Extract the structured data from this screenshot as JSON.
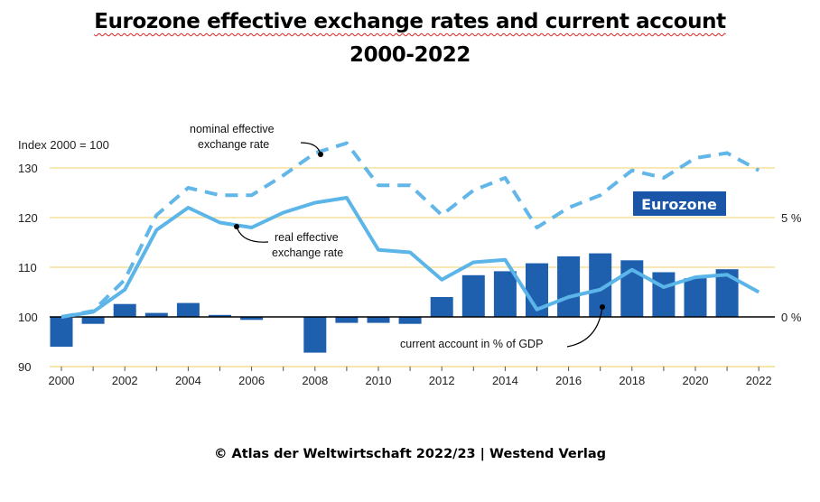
{
  "title_line1": "Eurozone effective exchange rates and current account",
  "title_line2": "2000-2022",
  "credit": "© Atlas der Weltwirtschaft 2022/23 | Westend Verlag",
  "colors": {
    "nominal": "#62b6e8",
    "real": "#5bb5e8",
    "bars": "#1e5fae",
    "grid": "#f3dc86",
    "badge_bg": "#1a55a8",
    "badge_text": "#ffffff"
  },
  "chart_data": {
    "type": "line+bar",
    "left_axis": {
      "label": "Index 2000 = 100",
      "ylim": [
        90,
        132
      ],
      "ticks": [
        "90",
        "100",
        "110",
        "120",
        "130"
      ]
    },
    "right_axis": {
      "ticks": [
        "0 %",
        "5 %"
      ]
    },
    "x_ticks": [
      "2000",
      "2002",
      "2004",
      "2006",
      "2008",
      "2010",
      "2012",
      "2014",
      "2016",
      "2018",
      "2020",
      "2022"
    ],
    "years": [
      2000,
      2001,
      2002,
      2003,
      2004,
      2005,
      2006,
      2007,
      2008,
      2009,
      2010,
      2011,
      2012,
      2013,
      2014,
      2015,
      2016,
      2017,
      2018,
      2019,
      2020,
      2021,
      2022
    ],
    "grid": true,
    "series": [
      {
        "name": "nominal effective exchange rate",
        "style": "dashed",
        "values": [
          100,
          101.2,
          107.5,
          120.5,
          126,
          124.5,
          124.5,
          128.5,
          133,
          135,
          126.5,
          126.5,
          120.5,
          125.5,
          128,
          118,
          122,
          124.5,
          129.5,
          128,
          132,
          133,
          129.5
        ]
      },
      {
        "name": "real effective exchange rate",
        "style": "solid",
        "values": [
          100,
          101,
          105.5,
          117.5,
          122,
          119,
          118,
          121,
          123,
          124,
          113.5,
          113,
          107.5,
          111,
          111.5,
          101.5,
          104,
          105.5,
          109.5,
          106,
          108,
          108.5,
          105
        ]
      },
      {
        "name": "current account in % of GDP",
        "type": "bar",
        "axis": "right",
        "values": [
          -1.5,
          -0.35,
          0.65,
          0.2,
          0.7,
          0.1,
          -0.15,
          0,
          -1.8,
          -0.3,
          -0.3,
          -0.35,
          1.0,
          2.1,
          2.3,
          2.7,
          3.05,
          3.2,
          2.85,
          2.25,
          1.95,
          2.4,
          0
        ]
      }
    ],
    "annotations": {
      "nominal_line1": "nominal effective",
      "nominal_line2": "exchange rate",
      "real_line1": "real effective",
      "real_line2": "exchange rate",
      "current_account": "current account in % of GDP",
      "badge": "Eurozone"
    }
  }
}
